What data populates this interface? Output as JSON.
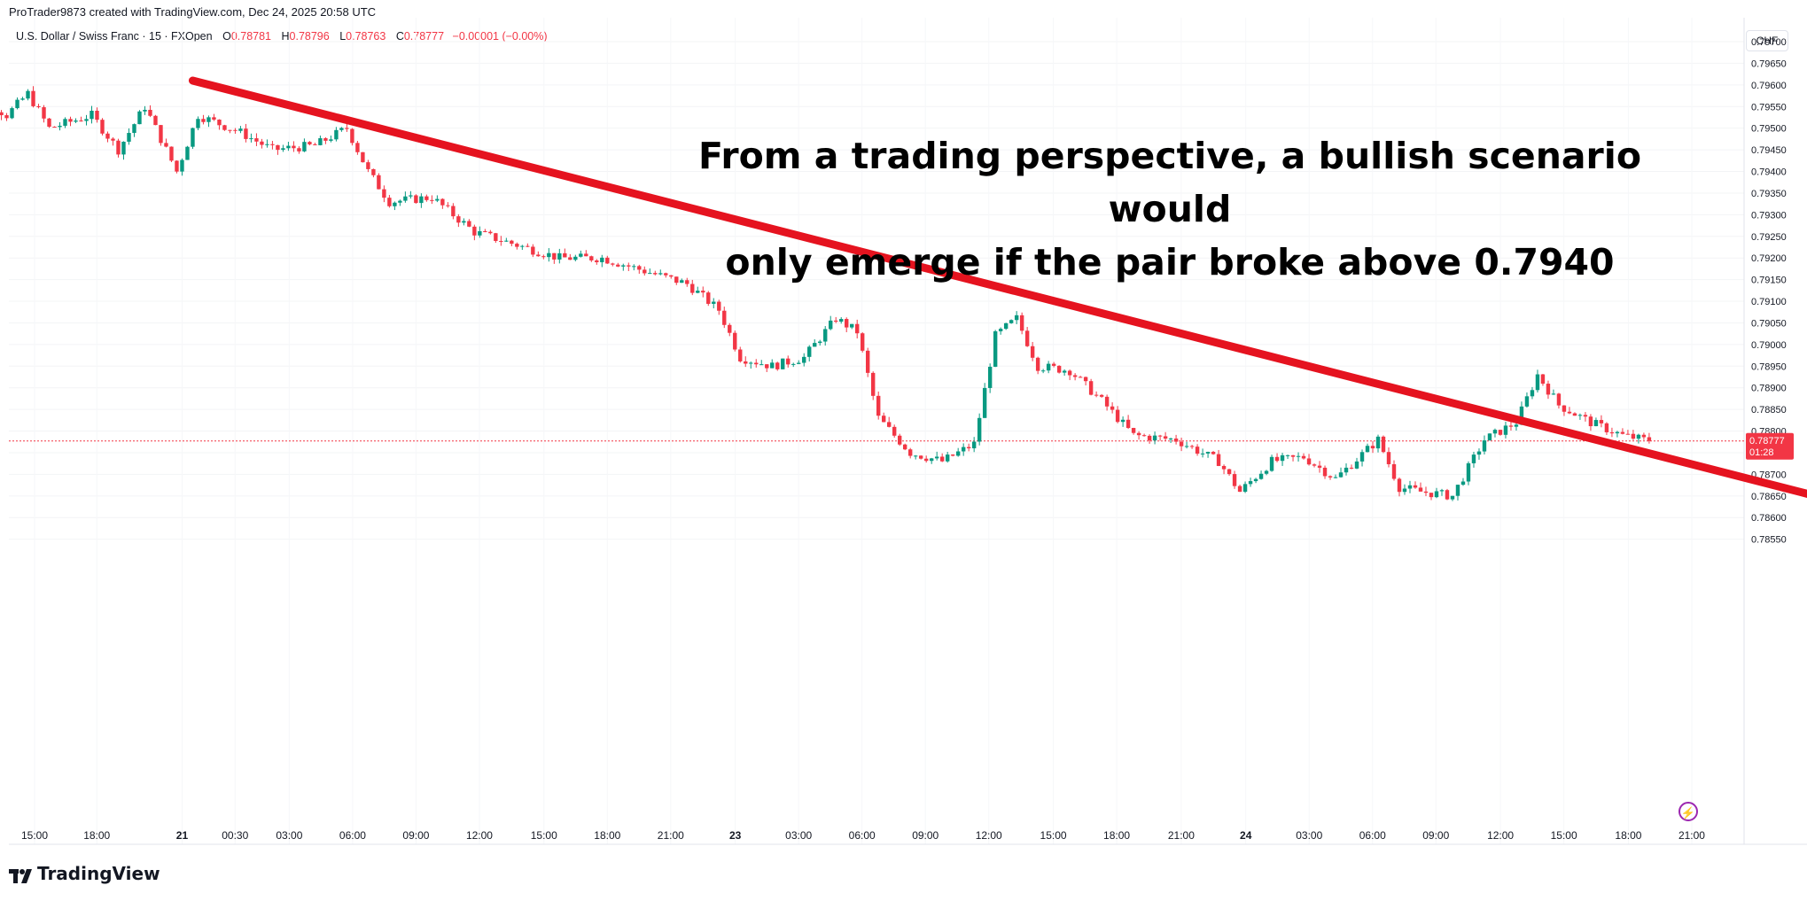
{
  "header": {
    "attribution": "ProTrader9873 created with TradingView.com, Dec 24, 2025 20:58 UTC",
    "symbol": "U.S. Dollar / Swiss Franc · 15 · FXOpen",
    "ohlc": {
      "o_label": "O",
      "o_value": "0.78781",
      "h_label": "H",
      "h_value": "0.78796",
      "l_label": "L",
      "l_value": "0.78763",
      "c_label": "C",
      "c_value": "0.78777",
      "change": "−0.00001 (−0.00%)"
    },
    "currency": "CHF"
  },
  "annotation": {
    "line1": "From a trading perspective, a bullish scenario would",
    "line2": "only emerge if the pair broke above 0.7940"
  },
  "price_tag": {
    "price": "0.78777",
    "countdown": "01:28"
  },
  "brand": "TradingView",
  "colors": {
    "up": "#089981",
    "down": "#f23645",
    "arrow": "#e5131f",
    "text": "#131722"
  },
  "chart_data": {
    "type": "candlestick",
    "title": "",
    "y_axis": {
      "range": [
        0.7852,
        0.7971
      ],
      "ticks": [
        "0.79700",
        "0.79650",
        "0.79600",
        "0.79550",
        "0.79500",
        "0.79450",
        "0.79400",
        "0.79350",
        "0.79300",
        "0.79250",
        "0.79200",
        "0.79150",
        "0.79100",
        "0.79050",
        "0.79000",
        "0.78950",
        "0.78900",
        "0.78850",
        "0.78800",
        "0.78750",
        "0.78700",
        "0.78650",
        "0.78600",
        "0.78550"
      ]
    },
    "x_axis": {
      "ticks": [
        "15:00",
        "18:00",
        "21",
        "00:30",
        "03:00",
        "06:00",
        "09:00",
        "12:00",
        "15:00",
        "18:00",
        "21:00",
        "23",
        "03:00",
        "06:00",
        "09:00",
        "12:00",
        "15:00",
        "18:00",
        "21:00",
        "24",
        "03:00",
        "06:00",
        "09:00",
        "12:00",
        "15:00",
        "18:00",
        "21:00"
      ]
    },
    "current_price": 0.78777,
    "trend_arrow": {
      "from": {
        "x": "Dec 21 00:30",
        "y": 0.7961
      },
      "to": {
        "x": "Dec 24 10:00",
        "y": 0.7858
      }
    },
    "path_points": [
      {
        "t": "Dec 20 13:30",
        "p": 0.795
      },
      {
        "t": "Dec 20 14:30",
        "p": 0.7958
      },
      {
        "t": "Dec 20 16:00",
        "p": 0.7953
      },
      {
        "t": "Dec 20 17:00",
        "p": 0.7958
      },
      {
        "t": "Dec 20 18:00",
        "p": 0.795
      },
      {
        "t": "Dec 20 20:00",
        "p": 0.7953
      },
      {
        "t": "Dec 20 21:15",
        "p": 0.7945
      },
      {
        "t": "Dec 20 22:30",
        "p": 0.7955
      },
      {
        "t": "Dec 21 00:00",
        "p": 0.794
      },
      {
        "t": "Dec 21 01:00",
        "p": 0.7953
      },
      {
        "t": "Dec 21 03:00",
        "p": 0.7949
      },
      {
        "t": "Dec 21 04:30",
        "p": 0.7945
      },
      {
        "t": "Dec 21 06:30",
        "p": 0.7946
      },
      {
        "t": "Dec 21 08:00",
        "p": 0.795
      },
      {
        "t": "Dec 21 09:00",
        "p": 0.794
      },
      {
        "t": "Dec 21 10:00",
        "p": 0.7933
      },
      {
        "t": "Dec 21 12:00",
        "p": 0.7934
      },
      {
        "t": "Dec 21 14:00",
        "p": 0.7926
      },
      {
        "t": "Dec 21 16:00",
        "p": 0.7923
      },
      {
        "t": "Dec 21 18:00",
        "p": 0.792
      },
      {
        "t": "Dec 21 20:00",
        "p": 0.792
      },
      {
        "t": "Dec 21 22:00",
        "p": 0.7917
      },
      {
        "t": "Dec 22 00:00",
        "p": 0.7914
      },
      {
        "t": "Dec 22 01:30",
        "p": 0.7908
      },
      {
        "t": "Dec 22 02:30",
        "p": 0.7897
      },
      {
        "t": "Dec 22 04:00",
        "p": 0.7895
      },
      {
        "t": "Dec 22 05:30",
        "p": 0.7897
      },
      {
        "t": "Dec 22 07:00",
        "p": 0.7906
      },
      {
        "t": "Dec 22 08:00",
        "p": 0.7903
      },
      {
        "t": "Dec 22 09:00",
        "p": 0.7883
      },
      {
        "t": "Dec 22 10:30",
        "p": 0.7875
      },
      {
        "t": "Dec 22 12:00",
        "p": 0.7873
      },
      {
        "t": "Dec 22 13:30",
        "p": 0.7877
      },
      {
        "t": "Dec 22 14:30",
        "p": 0.7902
      },
      {
        "t": "Dec 22 15:30",
        "p": 0.7906
      },
      {
        "t": "Dec 22 16:30",
        "p": 0.7895
      },
      {
        "t": "Dec 22 18:00",
        "p": 0.7894
      },
      {
        "t": "Dec 22 19:30",
        "p": 0.7887
      },
      {
        "t": "Dec 22 21:00",
        "p": 0.7879
      },
      {
        "t": "Dec 22 23:00",
        "p": 0.7878
      },
      {
        "t": "Dec 23 01:00",
        "p": 0.7873
      },
      {
        "t": "Dec 23 02:00",
        "p": 0.7866
      },
      {
        "t": "Dec 23 03:30",
        "p": 0.7873
      },
      {
        "t": "Dec 23 05:00",
        "p": 0.7874
      },
      {
        "t": "Dec 23 06:30",
        "p": 0.7869
      },
      {
        "t": "Dec 23 08:30",
        "p": 0.7878
      },
      {
        "t": "Dec 23 09:30",
        "p": 0.7867
      },
      {
        "t": "Dec 23 10:30",
        "p": 0.7866
      },
      {
        "t": "Dec 23 12:00",
        "p": 0.7865
      },
      {
        "t": "Dec 23 13:30",
        "p": 0.7878
      },
      {
        "t": "Dec 23 15:00",
        "p": 0.7882
      },
      {
        "t": "Dec 23 16:00",
        "p": 0.7893
      },
      {
        "t": "Dec 23 17:00",
        "p": 0.7886
      },
      {
        "t": "Dec 23 18:30",
        "p": 0.7882
      },
      {
        "t": "Dec 23 20:00",
        "p": 0.7879
      },
      {
        "t": "Dec 23 21:00",
        "p": 0.7878
      }
    ]
  }
}
